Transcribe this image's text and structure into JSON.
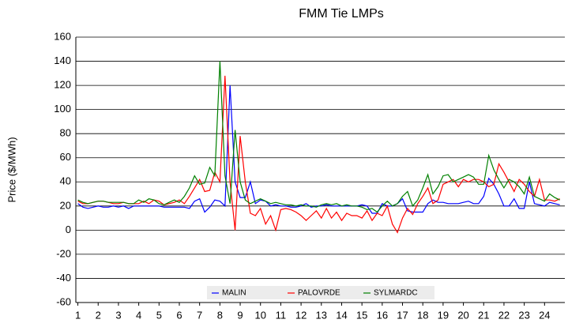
{
  "chart_data": {
    "type": "line",
    "title": "FMM Tie LMPs",
    "y_label": "Price ($/MWh)",
    "x": [
      1,
      1.25,
      1.5,
      1.75,
      2,
      2.25,
      2.5,
      2.75,
      3,
      3.25,
      3.5,
      3.75,
      4,
      4.25,
      4.5,
      4.75,
      5,
      5.25,
      5.5,
      5.75,
      6,
      6.25,
      6.5,
      6.75,
      7,
      7.25,
      7.5,
      7.75,
      8,
      8.25,
      8.5,
      8.75,
      9,
      9.25,
      9.5,
      9.75,
      10,
      10.25,
      10.5,
      10.75,
      11,
      11.25,
      11.5,
      11.75,
      12,
      12.25,
      12.5,
      12.75,
      13,
      13.25,
      13.5,
      13.75,
      14,
      14.25,
      14.5,
      14.75,
      15,
      15.25,
      15.5,
      15.75,
      16,
      16.25,
      16.5,
      16.75,
      17,
      17.25,
      17.5,
      17.75,
      18,
      18.25,
      18.5,
      18.75,
      19,
      19.25,
      19.5,
      19.75,
      20,
      20.25,
      20.5,
      20.75,
      21,
      21.25,
      21.5,
      21.75,
      22,
      22.25,
      22.5,
      22.75,
      23,
      23.25,
      23.5,
      23.75,
      24,
      24.25,
      24.5,
      24.75
    ],
    "series": [
      {
        "name": "MALIN",
        "color": "#0000ff",
        "values": [
          22,
          19,
          18,
          19,
          20,
          19,
          19,
          20,
          19,
          20,
          18,
          20,
          20,
          20,
          20,
          20,
          20,
          19,
          19,
          19,
          19,
          19,
          18,
          24,
          26,
          15,
          19,
          25,
          24,
          20,
          120,
          40,
          27,
          27,
          40,
          22,
          25,
          24,
          20,
          21,
          20,
          20,
          19,
          19,
          20,
          22,
          19,
          20,
          20,
          21,
          20,
          20,
          20,
          20,
          20,
          20,
          21,
          20,
          14,
          14,
          22,
          20,
          20,
          22,
          26,
          16,
          15,
          15,
          15,
          22,
          25,
          23,
          23,
          22,
          22,
          22,
          23,
          24,
          22,
          22,
          28,
          43,
          38,
          30,
          20,
          20,
          26,
          18,
          18,
          40,
          22,
          21,
          20,
          23,
          22,
          21
        ]
      },
      {
        "name": "PALOVRDE",
        "color": "#ff0000",
        "values": [
          24,
          22,
          22,
          23,
          24,
          24,
          23,
          22,
          22,
          23,
          22,
          22,
          22,
          24,
          22,
          25,
          24,
          21,
          22,
          23,
          25,
          22,
          28,
          35,
          42,
          32,
          33,
          48,
          40,
          128,
          40,
          0,
          78,
          40,
          14,
          12,
          18,
          5,
          12,
          0,
          17,
          18,
          17,
          15,
          12,
          8,
          12,
          16,
          10,
          18,
          10,
          15,
          8,
          14,
          12,
          12,
          10,
          16,
          8,
          14,
          12,
          20,
          5,
          -2,
          10,
          18,
          13,
          22,
          28,
          35,
          22,
          25,
          38,
          40,
          42,
          36,
          42,
          40,
          42,
          42,
          40,
          36,
          38,
          55,
          48,
          40,
          32,
          42,
          38,
          32,
          28,
          42,
          25,
          25,
          24,
          26
        ]
      },
      {
        "name": "SYLMARDC",
        "color": "#008000",
        "values": [
          25,
          23,
          22,
          23,
          24,
          24,
          23,
          23,
          23,
          23,
          22,
          22,
          25,
          23,
          26,
          25,
          22,
          21,
          23,
          25,
          23,
          28,
          35,
          45,
          38,
          39,
          52,
          45,
          140,
          45,
          22,
          83,
          40,
          25,
          22,
          24,
          26,
          24,
          22,
          23,
          22,
          21,
          21,
          20,
          21,
          20,
          20,
          19,
          21,
          22,
          21,
          22,
          20,
          21,
          20,
          20,
          19,
          17,
          18,
          15,
          20,
          24,
          20,
          22,
          28,
          32,
          20,
          25,
          35,
          46,
          30,
          36,
          45,
          46,
          40,
          42,
          44,
          46,
          44,
          38,
          38,
          62,
          50,
          42,
          35,
          42,
          40,
          36,
          30,
          44,
          28,
          26,
          24,
          30,
          27,
          25
        ]
      }
    ],
    "xlim": [
      0.9,
      25
    ],
    "xticks": [
      1,
      2,
      3,
      4,
      5,
      6,
      7,
      8,
      9,
      10,
      11,
      12,
      13,
      14,
      15,
      16,
      17,
      18,
      19,
      20,
      21,
      22,
      23,
      24
    ],
    "ylim": [
      -60,
      160
    ],
    "yticks": [
      -60,
      -40,
      -20,
      0,
      20,
      40,
      60,
      80,
      100,
      120,
      140,
      160
    ],
    "grid": true,
    "legend": "bottom"
  }
}
